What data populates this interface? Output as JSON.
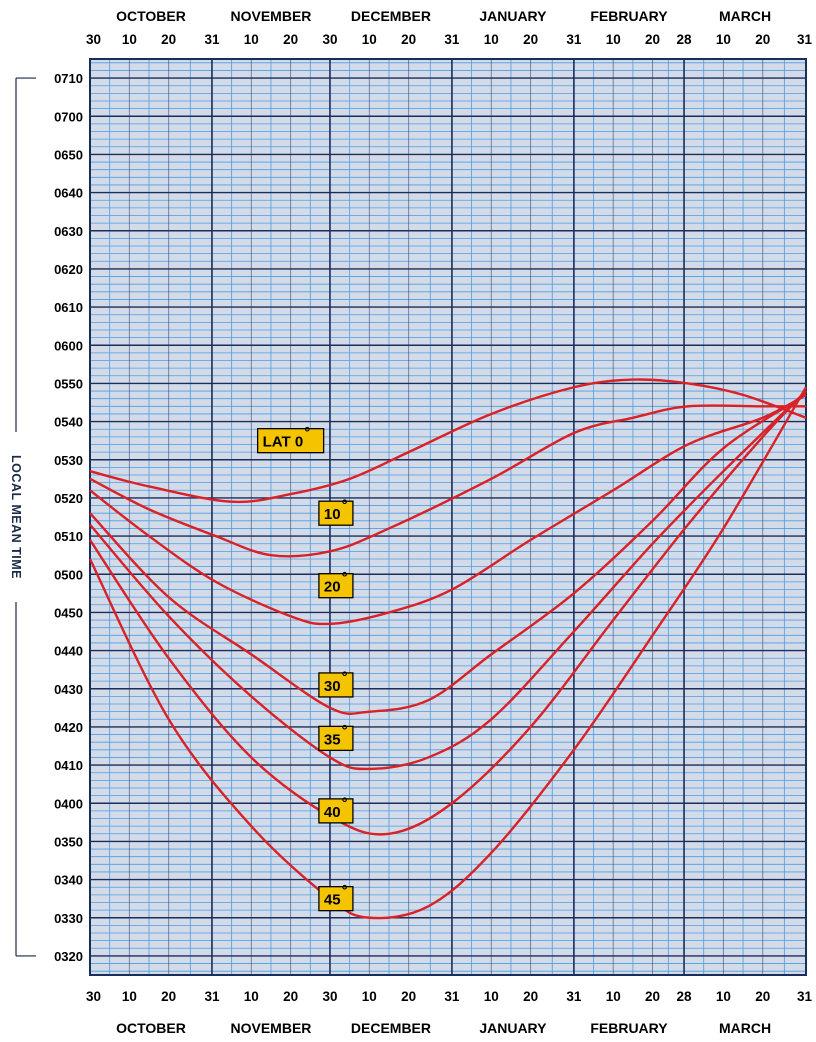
{
  "chart_data": {
    "type": "line",
    "title": "",
    "xlabel": "",
    "ylabel": "LOCAL MEAN TIME",
    "months": [
      {
        "name": "OCTOBER"
      },
      {
        "name": "NOVEMBER"
      },
      {
        "name": "DECEMBER"
      },
      {
        "name": "JANUARY"
      },
      {
        "name": "FEBRUARY"
      },
      {
        "name": "MARCH"
      }
    ],
    "x_tick_labels": [
      "30",
      "10",
      "20",
      "31",
      "10",
      "20",
      "30",
      "10",
      "20",
      "31",
      "10",
      "20",
      "31",
      "10",
      "20",
      "28",
      "10",
      "20",
      "31"
    ],
    "x_ticks": [
      "Sep 30",
      "Oct 10",
      "Oct 20",
      "Oct 31",
      "Nov 10",
      "Nov 20",
      "Nov 30",
      "Dec 10",
      "Dec 20",
      "Dec 31",
      "Jan 10",
      "Jan 20",
      "Jan 31",
      "Feb 10",
      "Feb 20",
      "Feb 28",
      "Mar 10",
      "Mar 20",
      "Mar 31"
    ],
    "y_tick_labels": [
      "0710",
      "0700",
      "0650",
      "0640",
      "0630",
      "0620",
      "0610",
      "0600",
      "0550",
      "0540",
      "0530",
      "0520",
      "0510",
      "0500",
      "0450",
      "0440",
      "0430",
      "0420",
      "0410",
      "0400",
      "0350",
      "0340",
      "0330",
      "0320"
    ],
    "ylim": [
      "0315",
      "0715"
    ],
    "grid": true,
    "series": [
      {
        "name": "LAT 0°",
        "points": [
          [
            "Sep 30",
            "05:27"
          ],
          [
            "Oct 15",
            "05:23"
          ],
          [
            "Nov 5",
            "05:19"
          ],
          [
            "Nov 20",
            "05:21"
          ],
          [
            "Dec 5",
            "05:25"
          ],
          [
            "Dec 20",
            "05:32"
          ],
          [
            "Jan 10",
            "05:42"
          ],
          [
            "Jan 31",
            "05:49"
          ],
          [
            "Feb 15",
            "05:51"
          ],
          [
            "Mar 1",
            "05:50"
          ],
          [
            "Mar 15",
            "05:47"
          ],
          [
            "Mar 31",
            "05:41"
          ]
        ]
      },
      {
        "name": "10°",
        "points": [
          [
            "Sep 30",
            "05:25"
          ],
          [
            "Oct 15",
            "05:17"
          ],
          [
            "Nov 1",
            "05:10"
          ],
          [
            "Nov 15",
            "05:05"
          ],
          [
            "Nov 30",
            "05:06"
          ],
          [
            "Dec 15",
            "05:12"
          ],
          [
            "Jan 10",
            "05:25"
          ],
          [
            "Jan 31",
            "05:37"
          ],
          [
            "Feb 15",
            "05:41"
          ],
          [
            "Mar 1",
            "05:44"
          ],
          [
            "Mar 20",
            "05:44"
          ],
          [
            "Mar 31",
            "05:44"
          ]
        ]
      },
      {
        "name": "20°",
        "points": [
          [
            "Sep 30",
            "05:22"
          ],
          [
            "Oct 15",
            "05:10"
          ],
          [
            "Nov 1",
            "04:58"
          ],
          [
            "Nov 20",
            "04:49"
          ],
          [
            "Nov 30",
            "04:47"
          ],
          [
            "Dec 15",
            "04:50"
          ],
          [
            "Dec 31",
            "04:56"
          ],
          [
            "Jan 20",
            "05:09"
          ],
          [
            "Feb 10",
            "05:22"
          ],
          [
            "Mar 1",
            "05:34"
          ],
          [
            "Mar 20",
            "05:41"
          ],
          [
            "Mar 31",
            "05:47"
          ]
        ]
      },
      {
        "name": "30°",
        "points": [
          [
            "Sep 30",
            "05:16"
          ],
          [
            "Oct 20",
            "04:54"
          ],
          [
            "Nov 10",
            "04:39"
          ],
          [
            "Nov 30",
            "04:25"
          ],
          [
            "Dec 10",
            "04:24"
          ],
          [
            "Dec 25",
            "04:27"
          ],
          [
            "Jan 10",
            "04:39"
          ],
          [
            "Jan 31",
            "04:55"
          ],
          [
            "Feb 20",
            "05:14"
          ],
          [
            "Mar 10",
            "05:33"
          ],
          [
            "Mar 31",
            "05:47"
          ]
        ]
      },
      {
        "name": "35°",
        "points": [
          [
            "Sep 30",
            "05:13"
          ],
          [
            "Oct 20",
            "04:49"
          ],
          [
            "Nov 10",
            "04:28"
          ],
          [
            "Nov 30",
            "04:12"
          ],
          [
            "Dec 10",
            "04:09"
          ],
          [
            "Dec 25",
            "04:12"
          ],
          [
            "Jan 10",
            "04:22"
          ],
          [
            "Jan 31",
            "04:45"
          ],
          [
            "Feb 20",
            "05:08"
          ],
          [
            "Mar 10",
            "05:27"
          ],
          [
            "Mar 31",
            "05:48"
          ]
        ]
      },
      {
        "name": "40°",
        "points": [
          [
            "Sep 30",
            "05:09"
          ],
          [
            "Oct 20",
            "04:38"
          ],
          [
            "Nov 10",
            "04:12"
          ],
          [
            "Dec 1",
            "03:56"
          ],
          [
            "Dec 15",
            "03:52"
          ],
          [
            "Dec 31",
            "04:00"
          ],
          [
            "Jan 20",
            "04:20"
          ],
          [
            "Feb 10",
            "04:48"
          ],
          [
            "Mar 1",
            "05:13"
          ],
          [
            "Mar 20",
            "05:36"
          ],
          [
            "Mar 31",
            "05:48"
          ]
        ]
      },
      {
        "name": "45°",
        "points": [
          [
            "Sep 30",
            "05:04"
          ],
          [
            "Oct 20",
            "04:22"
          ],
          [
            "Nov 10",
            "03:54"
          ],
          [
            "Nov 30",
            "03:35"
          ],
          [
            "Dec 10",
            "03:30"
          ],
          [
            "Dec 25",
            "03:33"
          ],
          [
            "Jan 10",
            "03:47"
          ],
          [
            "Jan 31",
            "04:14"
          ],
          [
            "Feb 20",
            "04:44"
          ],
          [
            "Mar 10",
            "05:12"
          ],
          [
            "Mar 31",
            "05:49"
          ]
        ]
      }
    ],
    "annotations": [
      {
        "text": "LAT 0",
        "degree": "°",
        "at": [
          "Nov 20",
          "05:35"
        ]
      },
      {
        "text": "10",
        "degree": "°",
        "at": [
          "Dec 1",
          "05:16"
        ]
      },
      {
        "text": "20",
        "degree": "°",
        "at": [
          "Dec 1",
          "04:57"
        ]
      },
      {
        "text": "30",
        "degree": "°",
        "at": [
          "Dec 1",
          "04:31"
        ]
      },
      {
        "text": "35",
        "degree": "°",
        "at": [
          "Dec 1",
          "04:17"
        ]
      },
      {
        "text": "40",
        "degree": "°",
        "at": [
          "Dec 1",
          "03:58"
        ]
      },
      {
        "text": "45",
        "degree": "°",
        "at": [
          "Dec 1",
          "03:35"
        ]
      }
    ],
    "colors": {
      "background": "#d3dae8",
      "minor_grid": "#4f9de0",
      "major_grid": "#1a2e5c",
      "curve": "#d92128",
      "label_box": "#f5c400"
    }
  }
}
